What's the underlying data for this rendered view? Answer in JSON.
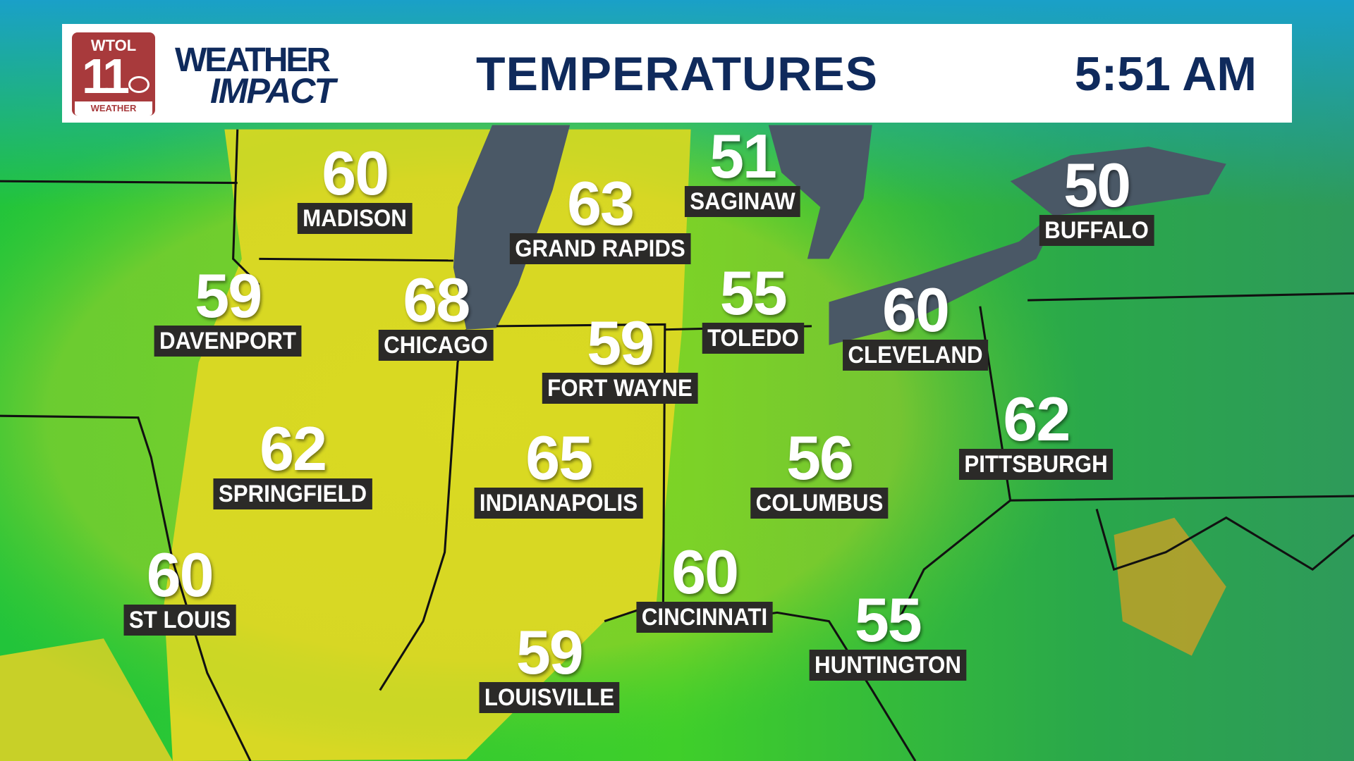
{
  "header": {
    "station": "WTOL",
    "channel": "11",
    "network_sub": "WEATHER",
    "brand_line1": "WEATHER",
    "brand_line2": "IMPACT",
    "title": "TEMPERATURES",
    "time": "5:51 AM"
  },
  "colors": {
    "header_text": "#0f2a5c",
    "logo_red": "#a83a3c",
    "label_bg": "#2b2a28",
    "lake": "#4a5866"
  },
  "cities": [
    {
      "name": "MADISON",
      "temp": "60"
    },
    {
      "name": "GRAND RAPIDS",
      "temp": "63"
    },
    {
      "name": "SAGINAW",
      "temp": "51"
    },
    {
      "name": "BUFFALO",
      "temp": "50"
    },
    {
      "name": "DAVENPORT",
      "temp": "59"
    },
    {
      "name": "CHICAGO",
      "temp": "68"
    },
    {
      "name": "TOLEDO",
      "temp": "55"
    },
    {
      "name": "CLEVELAND",
      "temp": "60"
    },
    {
      "name": "FORT WAYNE",
      "temp": "59"
    },
    {
      "name": "PITTSBURGH",
      "temp": "62"
    },
    {
      "name": "SPRINGFIELD",
      "temp": "62"
    },
    {
      "name": "INDIANAPOLIS",
      "temp": "65"
    },
    {
      "name": "COLUMBUS",
      "temp": "56"
    },
    {
      "name": "ST LOUIS",
      "temp": "60"
    },
    {
      "name": "CINCINNATI",
      "temp": "60"
    },
    {
      "name": "HUNTINGTON",
      "temp": "55"
    },
    {
      "name": "LOUISVILLE",
      "temp": "59"
    }
  ]
}
